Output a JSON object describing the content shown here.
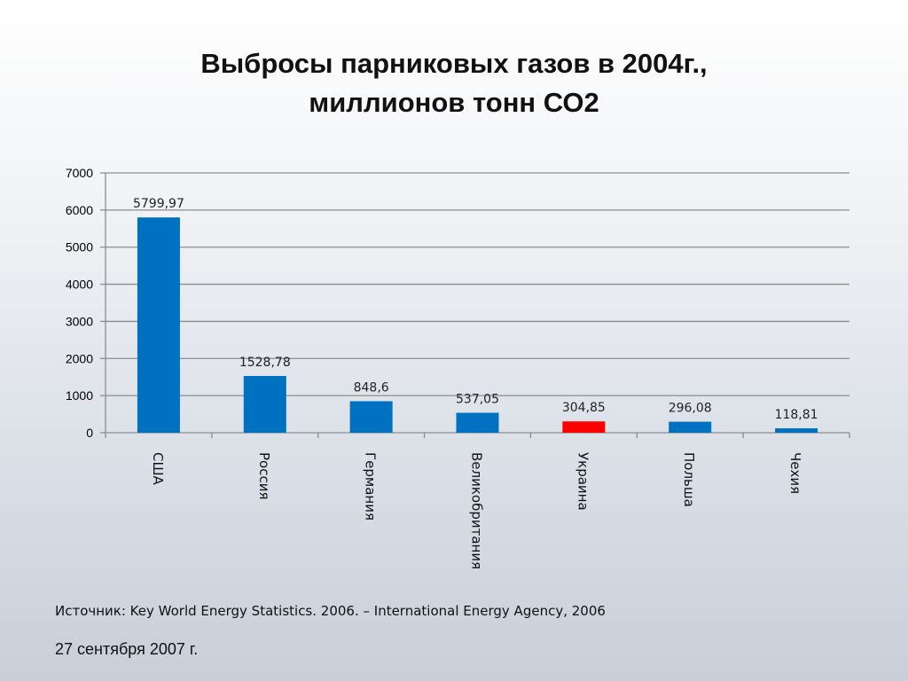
{
  "slide": {
    "title_line1": "Выбросы парниковых газов в 2004г.,",
    "title_line2": "миллионов тонн СО2",
    "source": "Источник:  Key World Energy Statistics. 2006. – International Energy Agency, 2006",
    "date": "27 сентября 2007 г."
  },
  "chart_data": {
    "type": "bar",
    "categories": [
      "США",
      "Россия",
      "Германия",
      "Великобритания",
      "Украина",
      "Польша",
      "Чехия"
    ],
    "values": [
      5799.97,
      1528.78,
      848.6,
      537.05,
      304.85,
      296.08,
      118.81
    ],
    "value_labels": [
      "5799,97",
      "1528,78",
      "848,6",
      "537,05",
      "304,85",
      "296,08",
      "118,81"
    ],
    "bar_colors": [
      "#0070c0",
      "#0070c0",
      "#0070c0",
      "#0070c0",
      "#ff0000",
      "#0070c0",
      "#0070c0"
    ],
    "ylim": [
      0,
      7000
    ],
    "yticks": [
      0,
      1000,
      2000,
      3000,
      4000,
      5000,
      6000,
      7000
    ],
    "grid": true,
    "category_label_orientation": "vertical"
  }
}
